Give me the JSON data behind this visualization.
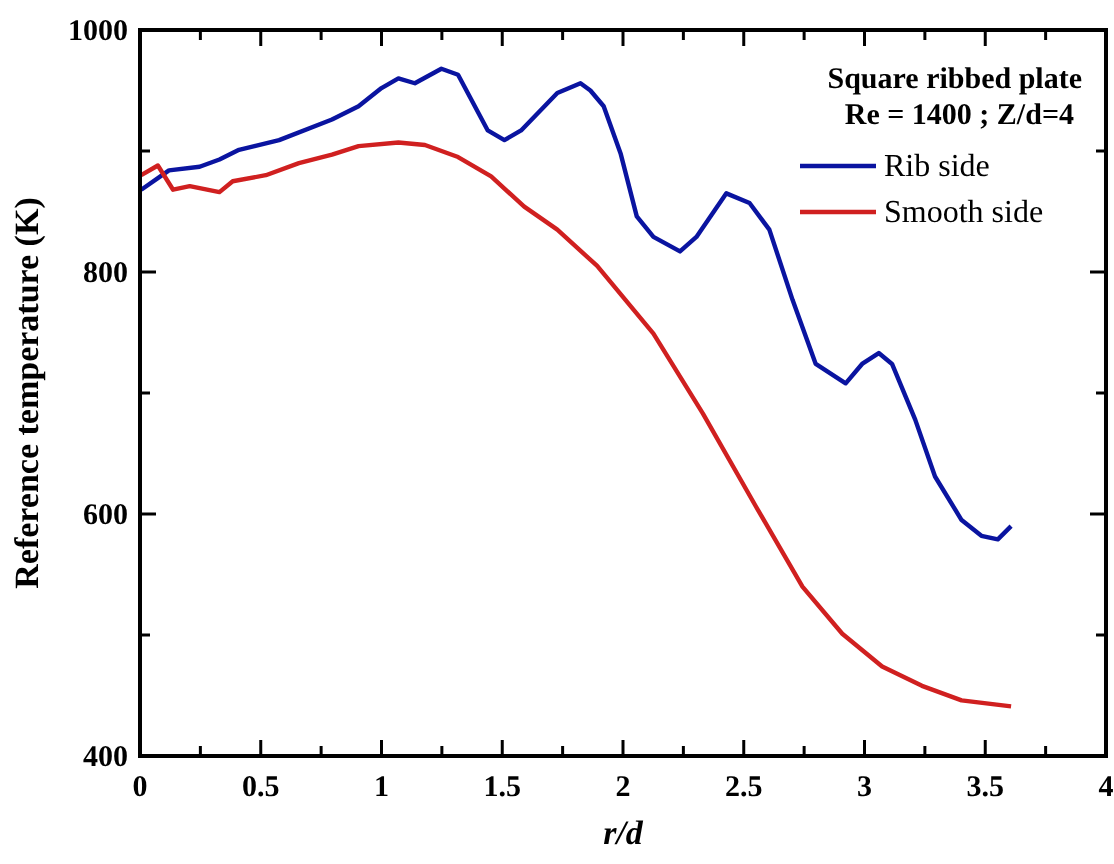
{
  "chart_data": {
    "type": "line",
    "xlabel": "r/d",
    "ylabel": "Reference temperature (K)",
    "legend_title": "Square ribbed plate",
    "annotations": [
      "Re = 1400 ; Z/d=4"
    ],
    "legend": "top right",
    "grid": false,
    "line_style": "solid",
    "marker": "none",
    "xlim": [
      0,
      4
    ],
    "xticks": [
      0,
      {
        "value": 0.25,
        "label": null
      },
      0.5,
      {
        "value": 0.75,
        "label": null
      },
      1,
      {
        "value": 1.25,
        "label": null
      },
      1.5,
      {
        "value": 1.75,
        "label": null
      },
      2,
      {
        "value": 2.25,
        "label": null
      },
      2.5,
      {
        "value": 2.75,
        "label": null
      },
      3,
      {
        "value": 3.25,
        "label": null
      },
      3.5,
      {
        "value": 3.75,
        "label": null
      },
      4
    ],
    "ylim": [
      400,
      1000
    ],
    "yticks": [
      400,
      {
        "value": 500,
        "label": null
      },
      600,
      {
        "value": 700,
        "label": null
      },
      800,
      {
        "value": 900,
        "label": null
      },
      1000
    ],
    "series": [
      {
        "name": "Rib side",
        "color": "#0a14a0",
        "x": [
          0.005,
          0.12,
          0.247,
          0.329,
          0.41,
          0.576,
          0.795,
          0.905,
          1.0,
          1.07,
          1.138,
          1.248,
          1.317,
          1.44,
          1.509,
          1.578,
          1.728,
          1.824,
          1.865,
          1.92,
          1.99,
          2.057,
          2.126,
          2.236,
          2.304,
          2.428,
          2.524,
          2.606,
          2.702,
          2.798,
          2.922,
          2.99,
          3.059,
          3.114,
          3.21,
          3.292,
          3.402,
          3.484,
          3.552,
          3.607
        ],
        "values": [
          868,
          884,
          887,
          893,
          901,
          909,
          926,
          937,
          952,
          960,
          956,
          968,
          963,
          917,
          909,
          917,
          948,
          956,
          950,
          937,
          898,
          846,
          829,
          817,
          829,
          865,
          857,
          835,
          777,
          724,
          708,
          724,
          733,
          724,
          678,
          631,
          595,
          582,
          579,
          590
        ]
      },
      {
        "name": "Smooth side",
        "color": "#d02020",
        "x": [
          0.005,
          0.074,
          0.137,
          0.206,
          0.329,
          0.384,
          0.521,
          0.658,
          0.795,
          0.905,
          1.07,
          1.18,
          1.317,
          1.454,
          1.591,
          1.728,
          1.893,
          2.126,
          2.331,
          2.551,
          2.743,
          2.908,
          3.073,
          3.238,
          3.402,
          3.607
        ],
        "values": [
          880,
          888,
          868,
          871,
          866,
          875,
          880,
          890,
          897,
          904,
          907,
          905,
          895,
          879,
          854,
          835,
          805,
          749,
          683,
          606,
          540,
          501,
          474,
          458,
          446,
          441
        ]
      }
    ]
  }
}
